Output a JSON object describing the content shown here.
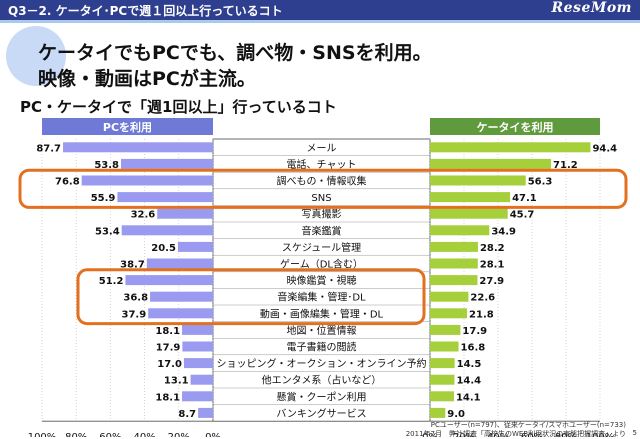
{
  "header": {
    "title": "Q3－2. ケータイ･PCで週１回以上行っているコト",
    "logo": "ReseMom"
  },
  "headline": {
    "line1": "ケータイでもPCでも、調べ物・SNSを利用。",
    "line2": "映像・動画はPCが主流。"
  },
  "subtitle": "PC・ケータイで「週1回以上」行っているコト",
  "footnotes": {
    "sample": "PCユーザー(n=797)、従来ケータイ/スマホユーザー(n=733)",
    "source": "2011年7月　弊社調査「高校生のWEB利用状況の実態把握調査」より"
  },
  "page_number": "5",
  "chart_data": {
    "type": "bar",
    "orientation": "horizontal-butterfly",
    "categories": [
      "メール",
      "電話、チャット",
      "調べもの・情報収集",
      "SNS",
      "写真撮影",
      "音楽鑑賞",
      "スケジュール管理",
      "ゲーム（DL含む）",
      "映像鑑賞・視聴",
      "音楽編集・管理･DL",
      "動画・画像編集・管理・DL",
      "地図・位置情報",
      "電子書籍の閲読",
      "ショッピング・オークション・オンライン予約",
      "他エンタメ系（占いなど）",
      "懸賞・クーポン利用",
      "バンキングサービス"
    ],
    "series": [
      {
        "name": "PCを利用",
        "values": [
          87.7,
          53.8,
          76.8,
          55.9,
          32.6,
          53.4,
          20.5,
          38.7,
          51.2,
          36.8,
          37.9,
          18.1,
          17.9,
          17.0,
          13.1,
          18.1,
          8.7
        ],
        "color": "#9a9af0"
      },
      {
        "name": "ケータイを利用",
        "values": [
          94.4,
          71.2,
          56.3,
          47.1,
          45.7,
          34.9,
          28.2,
          28.1,
          27.9,
          22.6,
          21.8,
          17.9,
          16.8,
          14.5,
          14.4,
          14.1,
          9.0
        ],
        "color": "#a6cf3c"
      }
    ],
    "left_axis_ticks": [
      "100%",
      "80%",
      "60%",
      "40%",
      "20%",
      "0%"
    ],
    "right_axis_ticks": [
      "0%",
      "20%",
      "40%",
      "60%",
      "80%",
      "100%"
    ],
    "xlim": [
      0,
      100
    ],
    "header_colors": {
      "pc": "#6e7ad6",
      "keitai": "#5f9a3c"
    },
    "highlight_color": "#e2701f",
    "highlight_groups": [
      [
        2,
        3
      ],
      [
        8,
        10
      ]
    ]
  }
}
